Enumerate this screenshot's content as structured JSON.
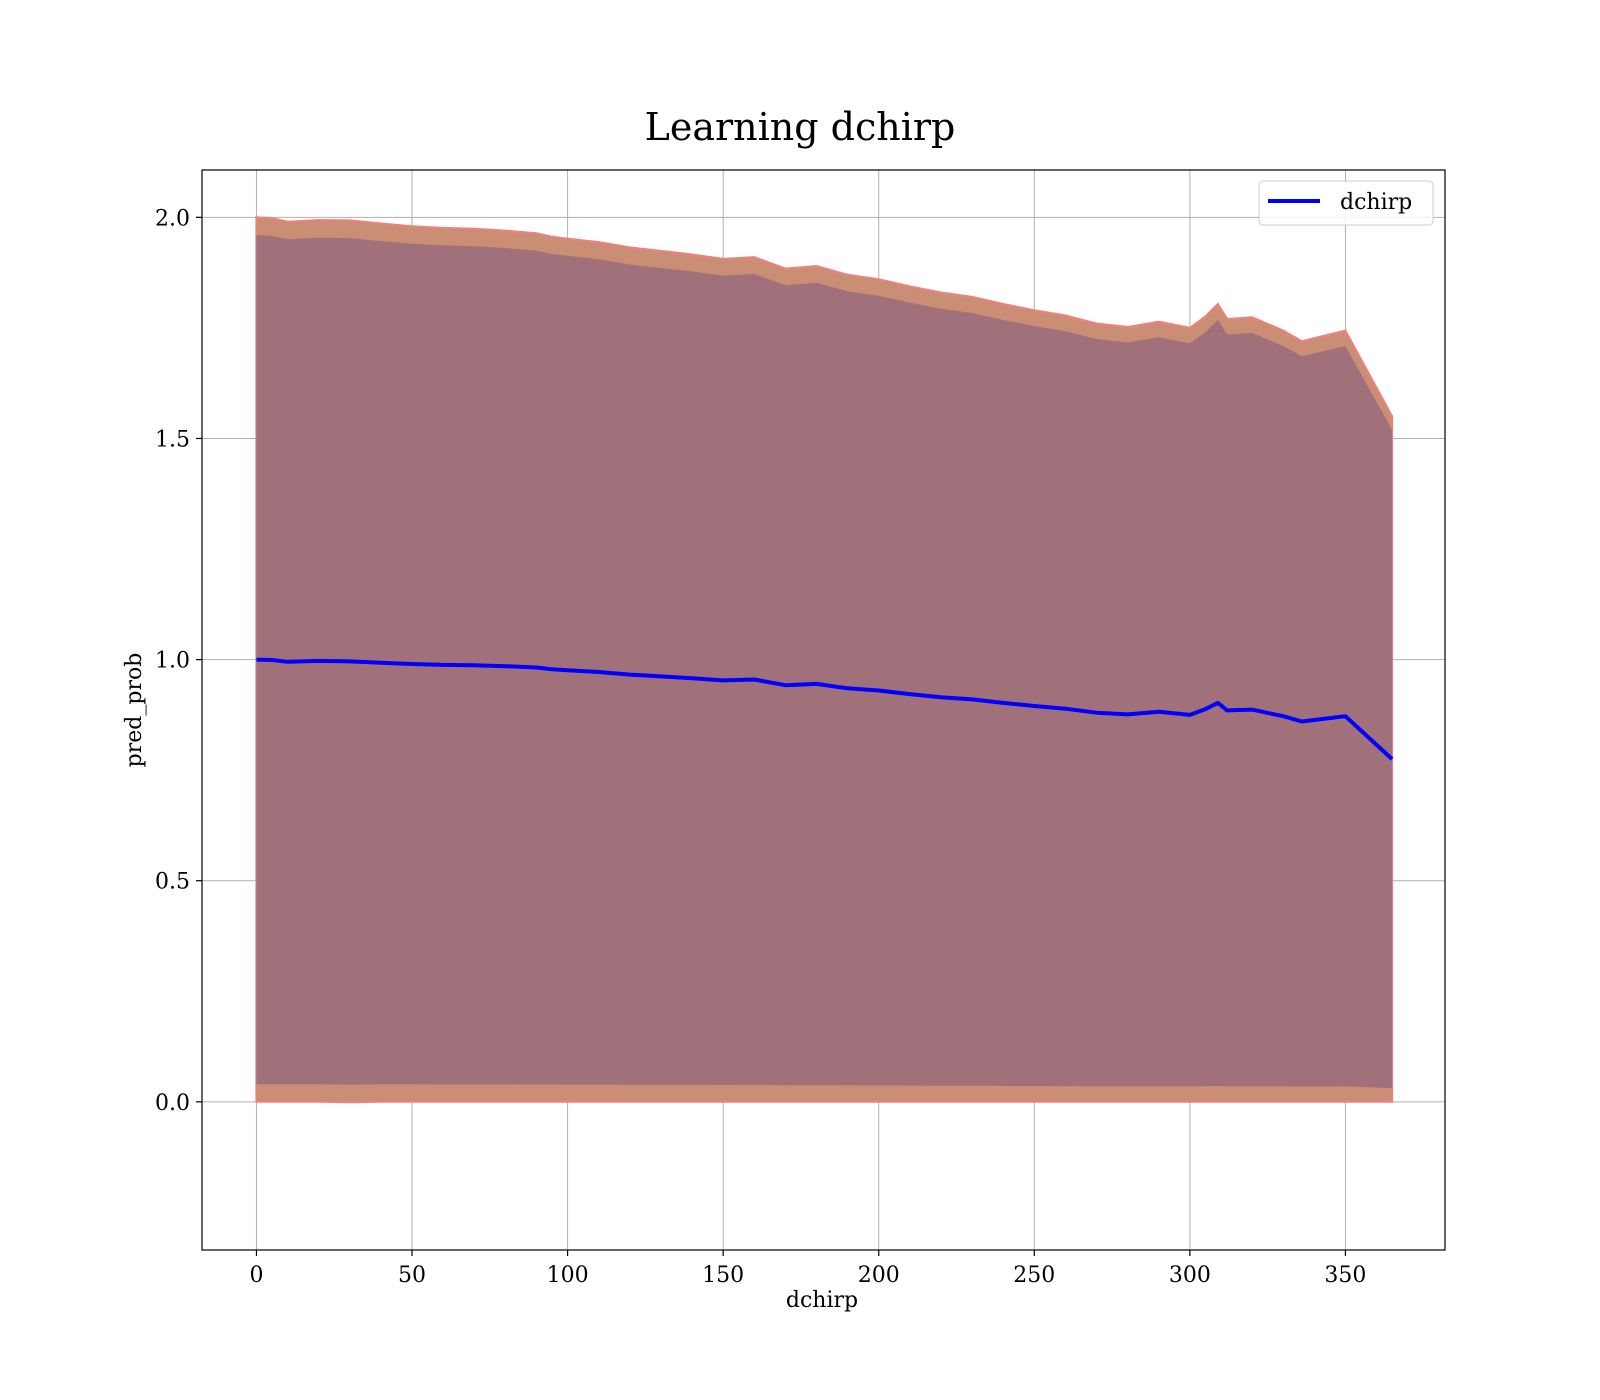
{
  "chart_data": {
    "type": "area",
    "title": "Learning dchirp",
    "xlabel": "dchirp",
    "ylabel": "pred_prob",
    "xlim": [
      -17.5,
      382
    ],
    "ylim": [
      -0.335,
      2.107
    ],
    "xticks": [
      "0",
      "50",
      "100",
      "150",
      "200",
      "250",
      "300",
      "350"
    ],
    "yticks": [
      "0.0",
      "0.5",
      "1.0",
      "1.5",
      "2.0"
    ],
    "grid": true,
    "legend": {
      "position": "top-right",
      "entries": [
        "dchirp"
      ]
    },
    "colors": {
      "line": "#0000ff",
      "outer_band": "#c98e74",
      "inner_band": "#a0717a",
      "band_edge": "#f08080"
    },
    "series": [
      {
        "name": "dchirp",
        "kind": "line",
        "x": [
          0,
          5,
          10,
          20,
          30,
          40,
          50,
          60,
          70,
          80,
          90,
          95,
          100,
          110,
          120,
          130,
          140,
          150,
          160,
          170,
          180,
          190,
          200,
          210,
          220,
          230,
          240,
          250,
          260,
          270,
          280,
          290,
          300,
          305,
          309,
          312,
          320,
          330,
          336,
          350,
          365
        ],
        "y": [
          1.0,
          0.999,
          0.995,
          0.997,
          0.996,
          0.993,
          0.99,
          0.988,
          0.987,
          0.985,
          0.982,
          0.978,
          0.976,
          0.972,
          0.966,
          0.962,
          0.958,
          0.953,
          0.955,
          0.942,
          0.945,
          0.935,
          0.93,
          0.922,
          0.915,
          0.91,
          0.902,
          0.895,
          0.889,
          0.88,
          0.876,
          0.882,
          0.875,
          0.888,
          0.902,
          0.885,
          0.887,
          0.872,
          0.86,
          0.872,
          0.775
        ]
      }
    ],
    "bands": [
      {
        "kind": "outer",
        "upper": [
          2.0,
          1.998,
          1.99,
          1.994,
          1.993,
          1.986,
          1.98,
          1.976,
          1.974,
          1.97,
          1.964,
          1.956,
          1.952,
          1.944,
          1.932,
          1.924,
          1.916,
          1.906,
          1.91,
          1.884,
          1.89,
          1.87,
          1.86,
          1.844,
          1.83,
          1.82,
          1.804,
          1.79,
          1.778,
          1.76,
          1.752,
          1.764,
          1.75,
          1.776,
          1.804,
          1.77,
          1.774,
          1.744,
          1.72,
          1.744,
          1.55
        ],
        "lower": [
          0.0,
          0.0,
          0.0,
          0.0,
          0.0,
          0.0,
          0.0,
          0.0,
          0.0,
          0.0,
          0.0,
          0.0,
          0.0,
          0.0,
          0.0,
          0.0,
          0.0,
          0.0,
          0.0,
          0.0,
          0.0,
          0.0,
          0.0,
          0.0,
          0.0,
          0.0,
          0.0,
          0.0,
          0.0,
          0.0,
          0.0,
          0.0,
          0.0,
          0.0,
          0.0,
          0.0,
          0.0,
          0.0,
          0.0,
          0.0,
          0.0
        ]
      }
    ]
  }
}
